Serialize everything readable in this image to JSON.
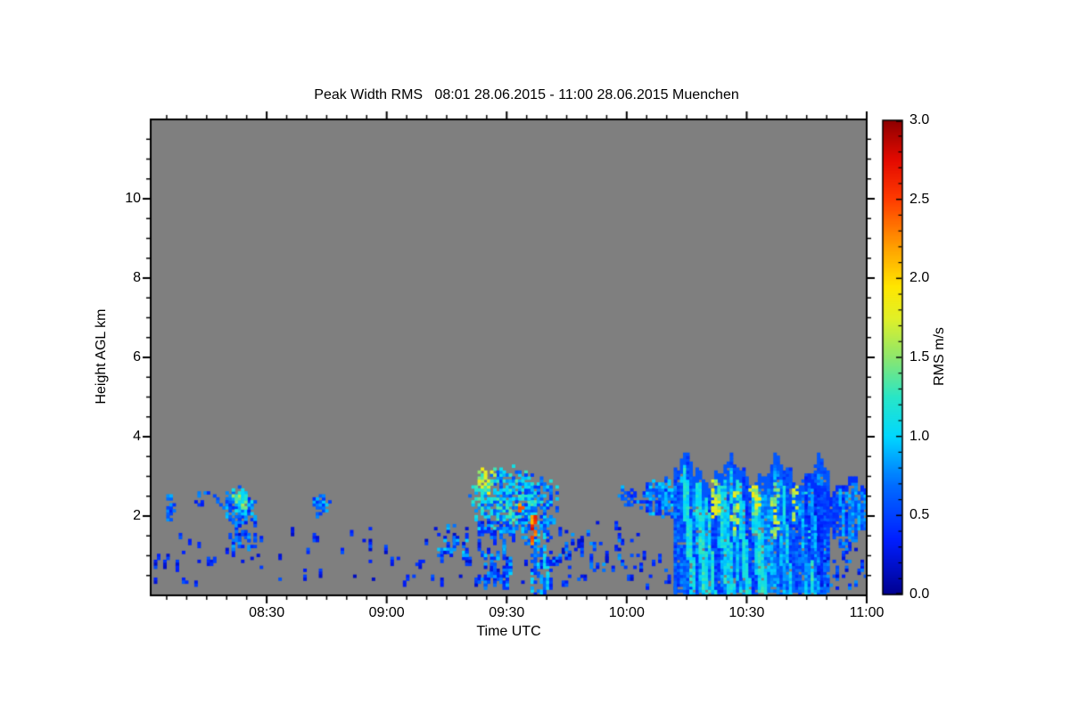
{
  "chart_data": {
    "type": "heatmap",
    "title": "Peak Width RMS   08:01 28.06.2015 - 11:00 28.06.2015 Muenchen",
    "xlabel": "Time UTC",
    "ylabel": "Height AGL km",
    "location": "Muenchen",
    "x_range_labels": [
      "08:01",
      "11:00"
    ],
    "x_range_minutes": [
      481,
      660
    ],
    "x_ticks": [
      {
        "label": "08:30",
        "t": 510
      },
      {
        "label": "09:00",
        "t": 540
      },
      {
        "label": "09:30",
        "t": 570
      },
      {
        "label": "10:00",
        "t": 600
      },
      {
        "label": "10:30",
        "t": 630
      },
      {
        "label": "11:00",
        "t": 660
      }
    ],
    "x_minor_step_minutes": 5,
    "y_range_km": [
      0,
      12
    ],
    "y_ticks": [
      {
        "label": "2",
        "km": 2
      },
      {
        "label": "4",
        "km": 4
      },
      {
        "label": "6",
        "km": 6
      },
      {
        "label": "8",
        "km": 8
      },
      {
        "label": "10",
        "km": 10
      }
    ],
    "y_minor_step_km": 0.5,
    "grid": false,
    "no_signal_color": "#7f7f7f",
    "frame_color": "#000000",
    "colorbar": {
      "label": "RMS m/s",
      "min": 0.0,
      "max": 3.0,
      "ticks": [
        {
          "label": "0.0",
          "value": 0.0
        },
        {
          "label": "0.5",
          "value": 0.5
        },
        {
          "label": "1.0",
          "value": 1.0
        },
        {
          "label": "1.5",
          "value": 1.5
        },
        {
          "label": "2.0",
          "value": 2.0
        },
        {
          "label": "2.5",
          "value": 2.5
        },
        {
          "label": "3.0",
          "value": 3.0
        }
      ],
      "minor_step": 0.1,
      "position": "right"
    },
    "colormap_stops": [
      [
        0.0,
        "#00008f"
      ],
      [
        0.35,
        "#001eff"
      ],
      [
        0.7,
        "#006eff"
      ],
      [
        1.0,
        "#00d7ff"
      ],
      [
        1.25,
        "#28e6c8"
      ],
      [
        1.5,
        "#8ce66e"
      ],
      [
        1.75,
        "#e1f028"
      ],
      [
        1.95,
        "#ffe600"
      ],
      [
        2.2,
        "#ffa000"
      ],
      [
        2.5,
        "#ff3c00"
      ],
      [
        2.75,
        "#e40a00"
      ],
      [
        3.0,
        "#8f0000"
      ]
    ],
    "features_note": "Radar/lidar echo regions: t in UTC minutes-of-day, h in km AGL, v = RMS m/s",
    "features": [
      {
        "id": "ground-aerosol-speckle",
        "mode": "speckle",
        "t0": 482,
        "t1": 604,
        "h0": 0.3,
        "h1": 1.7,
        "density": 0.03,
        "vmin": 0.15,
        "vmax": 0.6,
        "run": 3
      },
      {
        "id": "speckle-group-0915",
        "mode": "speckle",
        "t0": 552,
        "t1": 560,
        "h0": 0.9,
        "h1": 1.8,
        "density": 0.16,
        "vmin": 0.2,
        "vmax": 1.1,
        "run": 3
      },
      {
        "id": "cloud-0806",
        "mode": "blob",
        "tc": 486,
        "hc": 2.2,
        "rt": 1.3,
        "rh": 0.38,
        "density": 0.8,
        "vmin": 0.3,
        "vmax": 0.9
      },
      {
        "id": "cloud-dots-0815",
        "mode": "speckle",
        "t0": 492,
        "t1": 500,
        "h0": 2.3,
        "h1": 2.62,
        "density": 0.28,
        "vmin": 0.3,
        "vmax": 0.8,
        "run": 2
      },
      {
        "id": "cloud-0822",
        "mode": "blob",
        "tc": 503,
        "hc": 2.25,
        "rt": 4.2,
        "rh": 0.45,
        "density": 0.85,
        "vmin": 0.35,
        "vmax": 1.1
      },
      {
        "id": "cloud-0822-core",
        "mode": "blob",
        "tc": 503.5,
        "hc": 2.35,
        "rt": 2.0,
        "rh": 0.3,
        "density": 0.9,
        "vmin": 0.9,
        "vmax": 1.7
      },
      {
        "id": "cloud-0822-virga",
        "mode": "speckle",
        "t0": 502,
        "t1": 507,
        "h0": 1.2,
        "h1": 2.0,
        "density": 0.3,
        "vmin": 0.3,
        "vmax": 0.9,
        "run": 4
      },
      {
        "id": "cloud-0843",
        "mode": "blob",
        "tc": 523.5,
        "hc": 2.3,
        "rt": 2.4,
        "rh": 0.3,
        "density": 0.85,
        "vmin": 0.35,
        "vmax": 1.0
      },
      {
        "id": "shower-0930-main",
        "mode": "blob",
        "tc": 570,
        "hc": 2.4,
        "rt": 8.5,
        "rh": 0.8,
        "density": 0.8,
        "vmin": 0.5,
        "vmax": 1.4
      },
      {
        "id": "shower-0930-b",
        "mode": "blob",
        "tc": 577,
        "hc": 2.2,
        "rt": 6.0,
        "rh": 0.9,
        "density": 0.65,
        "vmin": 0.4,
        "vmax": 1.2
      },
      {
        "id": "shower-0930-tail-left",
        "mode": "speckle",
        "t0": 563,
        "t1": 571,
        "h0": 0.3,
        "h1": 1.9,
        "density": 0.22,
        "vmin": 0.25,
        "vmax": 1.0,
        "run": 4
      },
      {
        "id": "shower-0930-tail-right",
        "mode": "rain",
        "t0": 576,
        "t1": 581,
        "topBase": 1.5,
        "topAmp": 0.5,
        "botBase": 0.12,
        "botAmp": 0.3,
        "density": 0.55,
        "vmin": 0.3,
        "vmax": 1.1,
        "rim": 0,
        "slant": 0.8
      },
      {
        "id": "shower-0930-bright-edge",
        "mode": "blob",
        "tc": 565,
        "hc": 2.85,
        "rt": 2.6,
        "rh": 0.35,
        "density": 0.9,
        "vmin": 1.2,
        "vmax": 1.9
      },
      {
        "id": "shower-0930-red-dot",
        "mode": "blob",
        "tc": 573.5,
        "hc": 2.2,
        "rt": 0.6,
        "rh": 0.15,
        "density": 1.0,
        "vmin": 2.2,
        "vmax": 2.8
      },
      {
        "id": "shower-0930-red-streak",
        "mode": "blob",
        "tc": 576.5,
        "hc": 1.7,
        "rt": 0.9,
        "rh": 0.5,
        "density": 0.95,
        "vmin": 2.0,
        "vmax": 2.9
      },
      {
        "id": "speckle-0945",
        "mode": "speckle",
        "t0": 582,
        "t1": 599,
        "h0": 0.3,
        "h1": 1.9,
        "density": 0.07,
        "vmin": 0.2,
        "vmax": 0.85,
        "run": 3
      },
      {
        "id": "cloud-1004",
        "mode": "blob",
        "tc": 600,
        "hc": 2.5,
        "rt": 2.3,
        "rh": 0.27,
        "density": 0.85,
        "vmin": 0.3,
        "vmax": 0.95
      },
      {
        "id": "rain-left-band",
        "mode": "blob",
        "tc": 609,
        "hc": 2.45,
        "rt": 6.5,
        "rh": 0.5,
        "density": 0.88,
        "vmin": 0.3,
        "vmax": 1.05
      },
      {
        "id": "rain-ground-speckle",
        "mode": "speckle",
        "t0": 599,
        "t1": 616,
        "h0": 0.2,
        "h1": 1.2,
        "density": 0.06,
        "vmin": 0.2,
        "vmax": 0.7,
        "run": 3
      },
      {
        "id": "rain-main",
        "mode": "rain",
        "t0": 612,
        "t1": 650,
        "topBase": 3.1,
        "topAmp": 0.5,
        "botBase": 0.06,
        "botAmp": 0.06,
        "density": 0.94,
        "vmin": 0.35,
        "vmax": 1.35,
        "rim": 0.3,
        "slant": 0.8
      },
      {
        "id": "rain-core-1",
        "mode": "blob",
        "tc": 622,
        "hc": 2.4,
        "rt": 1.3,
        "rh": 0.6,
        "density": 0.75,
        "vmin": 1.4,
        "vmax": 1.95
      },
      {
        "id": "rain-core-2",
        "mode": "blob",
        "tc": 627,
        "hc": 2.0,
        "rt": 1.0,
        "rh": 0.7,
        "density": 0.7,
        "vmin": 1.4,
        "vmax": 1.9
      },
      {
        "id": "rain-core-3",
        "mode": "blob",
        "tc": 632,
        "hc": 2.5,
        "rt": 1.2,
        "rh": 0.5,
        "density": 0.7,
        "vmin": 1.4,
        "vmax": 1.9
      },
      {
        "id": "rain-core-4",
        "mode": "blob",
        "tc": 637,
        "hc": 2.1,
        "rt": 1.0,
        "rh": 0.8,
        "density": 0.6,
        "vmin": 1.4,
        "vmax": 1.85
      },
      {
        "id": "rain-core-5",
        "mode": "blob",
        "tc": 642,
        "hc": 2.4,
        "rt": 0.9,
        "rh": 0.5,
        "density": 0.6,
        "vmin": 1.4,
        "vmax": 1.8
      },
      {
        "id": "rain-right-band",
        "mode": "rain",
        "t0": 645,
        "t1": 660,
        "topBase": 2.75,
        "topAmp": 0.3,
        "botBase": 1.35,
        "botAmp": 0.45,
        "density": 0.85,
        "vmin": 0.25,
        "vmax": 0.95,
        "rim": 0.15,
        "slant": 0.8
      },
      {
        "id": "speckle-1050",
        "mode": "speckle",
        "t0": 648,
        "t1": 660,
        "h0": 0.2,
        "h1": 1.3,
        "density": 0.1,
        "vmin": 0.2,
        "vmax": 0.8,
        "run": 2
      }
    ]
  }
}
